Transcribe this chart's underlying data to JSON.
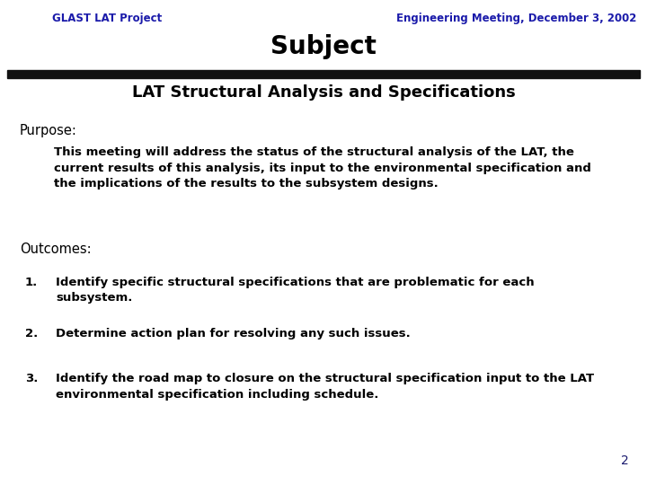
{
  "header_left": "GLAST LAT Project",
  "header_right": "Engineering Meeting, December 3, 2002",
  "title": "Subject",
  "subtitle": "LAT Structural Analysis and Specifications",
  "header_color": "#1a1aaa",
  "title_color": "#000000",
  "subtitle_color": "#000000",
  "background_color": "#ffffff",
  "bar_color": "#111111",
  "purpose_label": "Purpose:",
  "purpose_text": "This meeting will address the status of the structural analysis of the LAT, the\ncurrent results of this analysis, its input to the environmental specification and\nthe implications of the results to the subsystem designs.",
  "outcomes_label": "Outcomes:",
  "items": [
    "Identify specific structural specifications that are problematic for each\nsubsystem.",
    "Determine action plan for resolving any such issues.",
    "Identify the road map to closure on the structural specification input to the LAT\nenvironmental specification including schedule."
  ],
  "page_number": "2",
  "page_number_color": "#1a1a6e"
}
